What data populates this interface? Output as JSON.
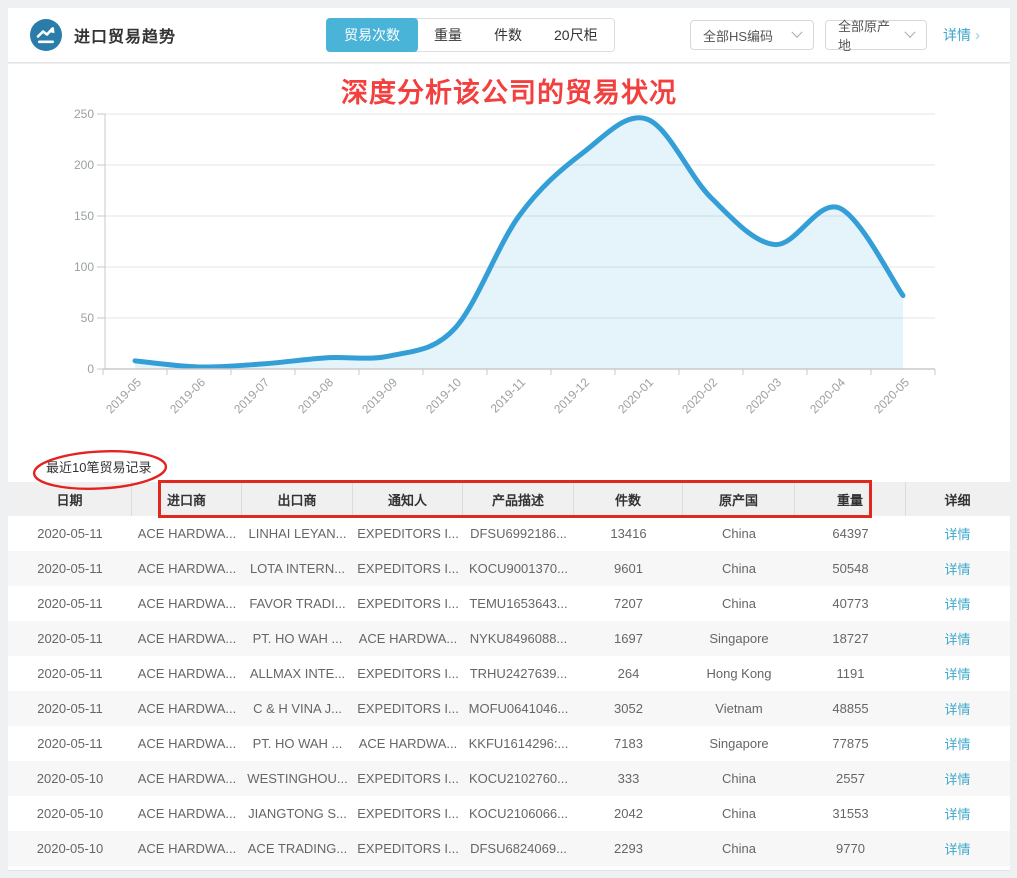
{
  "topbar": {
    "title": "进口贸易趋势",
    "tabs": [
      {
        "label": "贸易次数",
        "active": true
      },
      {
        "label": "重量",
        "active": false
      },
      {
        "label": "件数",
        "active": false
      },
      {
        "label": "20尺柜",
        "active": false
      }
    ],
    "hs_filter": "全部HS编码",
    "origin_filter": "全部原产地",
    "detail_link": "详情",
    "detail_arrow": "›"
  },
  "annotations": {
    "headline": "深度分析该公司的贸易状况"
  },
  "chart_data": {
    "type": "area",
    "title": "",
    "xlabel": "",
    "ylabel": "",
    "x": [
      "2019-05",
      "2019-06",
      "2019-07",
      "2019-08",
      "2019-09",
      "2019-10",
      "2019-11",
      "2019-12",
      "2020-01",
      "2020-02",
      "2020-03",
      "2020-04",
      "2020-05"
    ],
    "series": [
      {
        "name": "贸易次数",
        "values": [
          8,
          2,
          5,
          11,
          13,
          40,
          150,
          212,
          245,
          168,
          122,
          158,
          72
        ]
      }
    ],
    "ylim": [
      0,
      250
    ],
    "yticks": [
      0,
      50,
      100,
      150,
      200,
      250
    ],
    "grid": true,
    "legend_position": "none",
    "line_color": "#339fd6",
    "fill_color": "rgba(51,159,214,0.13)",
    "smooth": true
  },
  "records": {
    "label": "最近10笔贸易记录",
    "columns": [
      "日期",
      "进口商",
      "出口商",
      "通知人",
      "产品描述",
      "件数",
      "原产国",
      "重量",
      "详细"
    ],
    "detail_label": "详情",
    "rows": [
      {
        "date": "2020-05-11",
        "importer": "ACE HARDWA...",
        "exporter": "LINHAI LEYAN...",
        "notify": "EXPEDITORS I...",
        "product": "DFSU6992186...",
        "pieces": "13416",
        "origin": "China",
        "weight": "64397"
      },
      {
        "date": "2020-05-11",
        "importer": "ACE HARDWA...",
        "exporter": "LOTA INTERN...",
        "notify": "EXPEDITORS I...",
        "product": "KOCU9001370...",
        "pieces": "9601",
        "origin": "China",
        "weight": "50548"
      },
      {
        "date": "2020-05-11",
        "importer": "ACE HARDWA...",
        "exporter": "FAVOR TRADI...",
        "notify": "EXPEDITORS I...",
        "product": "TEMU1653643...",
        "pieces": "7207",
        "origin": "China",
        "weight": "40773"
      },
      {
        "date": "2020-05-11",
        "importer": "ACE HARDWA...",
        "exporter": "PT. HO WAH ...",
        "notify": "ACE HARDWA...",
        "product": "NYKU8496088...",
        "pieces": "1697",
        "origin": "Singapore",
        "weight": "18727"
      },
      {
        "date": "2020-05-11",
        "importer": "ACE HARDWA...",
        "exporter": "ALLMAX INTE...",
        "notify": "EXPEDITORS I...",
        "product": "TRHU2427639...",
        "pieces": "264",
        "origin": "Hong Kong",
        "weight": "1191"
      },
      {
        "date": "2020-05-11",
        "importer": "ACE HARDWA...",
        "exporter": "C & H VINA J...",
        "notify": "EXPEDITORS I...",
        "product": "MOFU0641046...",
        "pieces": "3052",
        "origin": "Vietnam",
        "weight": "48855"
      },
      {
        "date": "2020-05-11",
        "importer": "ACE HARDWA...",
        "exporter": "PT. HO WAH ...",
        "notify": "ACE HARDWA...",
        "product": "KKFU1614296:...",
        "pieces": "7183",
        "origin": "Singapore",
        "weight": "77875"
      },
      {
        "date": "2020-05-10",
        "importer": "ACE HARDWA...",
        "exporter": "WESTINGHOU...",
        "notify": "EXPEDITORS I...",
        "product": "KOCU2102760...",
        "pieces": "333",
        "origin": "China",
        "weight": "2557"
      },
      {
        "date": "2020-05-10",
        "importer": "ACE HARDWA...",
        "exporter": "JIANGTONG S...",
        "notify": "EXPEDITORS I...",
        "product": "KOCU2106066...",
        "pieces": "2042",
        "origin": "China",
        "weight": "31553"
      },
      {
        "date": "2020-05-10",
        "importer": "ACE HARDWA...",
        "exporter": "ACE TRADING...",
        "notify": "EXPEDITORS I...",
        "product": "DFSU6824069...",
        "pieces": "2293",
        "origin": "China",
        "weight": "9770"
      }
    ]
  },
  "colors": {
    "accent_blue": "#49b4d8",
    "icon_circle": "#2a7dab",
    "link_blue": "#3fa9cb",
    "annotation_red": "#e02820",
    "headline_red": "#f43f3f",
    "grid_line": "#e3e5e7",
    "axis_line": "#c8cacc",
    "axis_text": "#9aa0a3",
    "header_bg": "#f0f0f0",
    "row_alt_bg": "#f7f7f7"
  },
  "icons": {
    "app": "trend-line-icon",
    "dropdown": "chevron-down-icon"
  }
}
